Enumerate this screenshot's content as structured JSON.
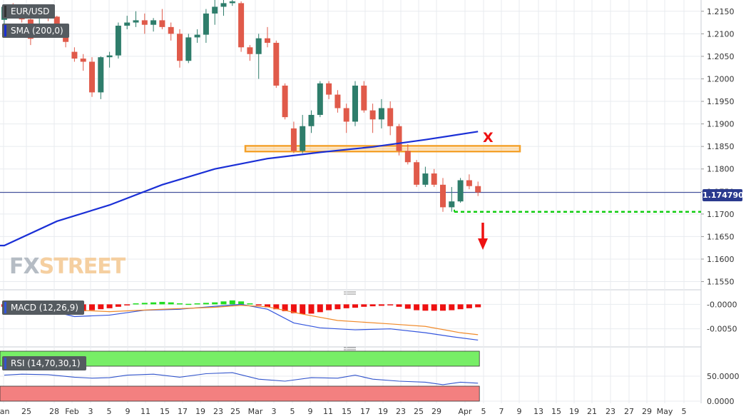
{
  "instrument": "EUR/USD",
  "sma_label": "SMA (200,0)",
  "macd_label": "MACD (12,26,9)",
  "rsi_label": "RSI (14,70,30,1)",
  "last_price": "1.174790",
  "watermark": {
    "fx": "FX",
    "street": "STREET"
  },
  "annotation_x": "X",
  "colors": {
    "up": "#2e7d6b",
    "down": "#e05a4a",
    "sma": "#1a2fd6",
    "resistance_zone": "#f4a12a",
    "support_line": "#11cc11",
    "arrow": "#ee1111",
    "price_line": "#2a3a8e",
    "macd_line": "#3355dd",
    "macd_signal": "#f08a2a",
    "macd_hist_pos": "#22dd22",
    "macd_hist_neg": "#ee1111",
    "rsi_line": "#3355cc",
    "rsi_overbought": "#77ee66",
    "rsi_oversold": "#f38080",
    "grid": "#e8ebef",
    "axis_text": "#333333"
  },
  "chart_data": [
    {
      "type": "candlestick",
      "title": "EUR/USD",
      "ylim": [
        1.1535,
        1.2175
      ],
      "y_ticks": [
        "1.2150",
        "1.2100",
        "1.2050",
        "1.2000",
        "1.1950",
        "1.1900",
        "1.1850",
        "1.1800",
        "1.1750",
        "1.1700",
        "1.1650",
        "1.1600",
        "1.1550"
      ],
      "x_ticks": [
        "Jan",
        "25",
        "28",
        "Feb",
        "3",
        "5",
        "9",
        "11",
        "15",
        "17",
        "19",
        "23",
        "25",
        "Mar",
        "3",
        "5",
        "9",
        "11",
        "15",
        "17",
        "19",
        "23",
        "25",
        "29",
        "Apr",
        "5",
        "7",
        "9",
        "13",
        "15",
        "19",
        "21",
        "23",
        "27",
        "29",
        "May",
        "5"
      ],
      "candles": [
        [
          1.2131,
          1.2165,
          1.2116,
          1.216
        ],
        [
          1.216,
          1.2168,
          1.2138,
          1.215
        ],
        [
          1.215,
          1.216,
          1.2125,
          1.2132
        ],
        [
          1.2132,
          1.214,
          1.2075,
          1.2089
        ],
        [
          1.2136,
          1.2158,
          1.2118,
          1.215
        ],
        [
          1.215,
          1.2165,
          1.2128,
          1.2138
        ],
        [
          1.2138,
          1.214,
          1.2095,
          1.211
        ],
        [
          1.211,
          1.2115,
          1.207,
          1.2082
        ],
        [
          1.206,
          1.207,
          1.2038,
          1.2045
        ],
        [
          1.2045,
          1.2055,
          1.2018,
          1.2038
        ],
        [
          1.2038,
          1.2048,
          1.196,
          1.197
        ],
        [
          1.197,
          1.205,
          1.1955,
          1.2048
        ],
        [
          1.2048,
          1.206,
          1.2025,
          1.2052
        ],
        [
          1.2052,
          1.2125,
          1.2045,
          1.2118
        ],
        [
          1.2118,
          1.214,
          1.211,
          1.2125
        ],
        [
          1.2125,
          1.215,
          1.2115,
          1.213
        ],
        [
          1.213,
          1.2145,
          1.21,
          1.212
        ],
        [
          1.212,
          1.2135,
          1.2105,
          1.213
        ],
        [
          1.213,
          1.2155,
          1.211,
          1.2115
        ],
        [
          1.2115,
          1.2125,
          1.2085,
          1.21
        ],
        [
          1.21,
          1.211,
          1.2025,
          1.204
        ],
        [
          1.204,
          1.21,
          1.2035,
          1.2092
        ],
        [
          1.2092,
          1.211,
          1.208,
          1.2098
        ],
        [
          1.2098,
          1.2155,
          1.208,
          1.2145
        ],
        [
          1.2145,
          1.2175,
          1.212,
          1.216
        ],
        [
          1.216,
          1.2175,
          1.214,
          1.2168
        ],
        [
          1.2168,
          1.2178,
          1.2162,
          1.2172
        ],
        [
          1.2168,
          1.2172,
          1.206,
          1.207
        ],
        [
          1.207,
          1.2075,
          1.204,
          1.2055
        ],
        [
          1.2055,
          1.21,
          1.2,
          1.209
        ],
        [
          1.209,
          1.2115,
          1.207,
          1.208
        ],
        [
          1.208,
          1.2085,
          1.198,
          1.1985
        ],
        [
          1.1985,
          1.199,
          1.191,
          1.1915
        ],
        [
          1.189,
          1.1905,
          1.1835,
          1.184
        ],
        [
          1.184,
          1.192,
          1.1835,
          1.1895
        ],
        [
          1.1895,
          1.193,
          1.188,
          1.192
        ],
        [
          1.192,
          1.1995,
          1.1915,
          1.199
        ],
        [
          1.199,
          1.1995,
          1.1955,
          1.1965
        ],
        [
          1.1965,
          1.1975,
          1.1925,
          1.1935
        ],
        [
          1.1935,
          1.1945,
          1.188,
          1.1905
        ],
        [
          1.1905,
          1.1995,
          1.1895,
          1.1985
        ],
        [
          1.1985,
          1.1995,
          1.1925,
          1.193
        ],
        [
          1.193,
          1.1945,
          1.188,
          1.191
        ],
        [
          1.191,
          1.1955,
          1.189,
          1.1935
        ],
        [
          1.1935,
          1.195,
          1.1875,
          1.1895
        ],
        [
          1.1895,
          1.19,
          1.183,
          1.184
        ],
        [
          1.184,
          1.1855,
          1.181,
          1.1815
        ],
        [
          1.1815,
          1.182,
          1.176,
          1.1765
        ],
        [
          1.1765,
          1.1805,
          1.176,
          1.179
        ],
        [
          1.179,
          1.18,
          1.176,
          1.1765
        ],
        [
          1.1765,
          1.178,
          1.1705,
          1.1715
        ],
        [
          1.1715,
          1.176,
          1.1705,
          1.1728
        ],
        [
          1.1728,
          1.178,
          1.1725,
          1.1775
        ],
        [
          1.1775,
          1.1788,
          1.1755,
          1.1762
        ],
        [
          1.1762,
          1.1772,
          1.174,
          1.1748
        ]
      ],
      "sma_200": [
        [
          0,
          1.163
        ],
        [
          6,
          1.1684
        ],
        [
          12,
          1.172
        ],
        [
          18,
          1.1765
        ],
        [
          24,
          1.18
        ],
        [
          30,
          1.1823
        ],
        [
          36,
          1.1837
        ],
        [
          42,
          1.1849
        ],
        [
          48,
          1.1865
        ],
        [
          54,
          1.1883
        ]
      ],
      "resistance_zone": [
        1.1842,
        1.1848
      ],
      "support_level": 1.1705,
      "last_price": 1.17479
    },
    {
      "type": "line",
      "title": "MACD (12,26,9)",
      "ylim": [
        -0.0084,
        0.0018
      ],
      "y_ticks": [
        "-0.0000",
        "-0.0050"
      ],
      "series": [
        {
          "name": "MACD",
          "values": [
            [
              0,
              0.0
            ],
            [
              4,
              -0.0008
            ],
            [
              8,
              -0.0025
            ],
            [
              12,
              -0.0022
            ],
            [
              16,
              -0.0012
            ],
            [
              20,
              -0.001
            ],
            [
              24,
              -0.0004
            ],
            [
              27,
              0.0
            ],
            [
              30,
              -0.001
            ],
            [
              33,
              -0.0038
            ],
            [
              36,
              -0.0048
            ],
            [
              40,
              -0.0052
            ],
            [
              44,
              -0.005
            ],
            [
              48,
              -0.0058
            ],
            [
              51,
              -0.0066
            ],
            [
              54,
              -0.0073
            ]
          ]
        },
        {
          "name": "Signal",
          "values": [
            [
              0,
              0.0002
            ],
            [
              6,
              -0.001
            ],
            [
              12,
              -0.0015
            ],
            [
              18,
              -0.001
            ],
            [
              24,
              -0.0006
            ],
            [
              27,
              -0.0002
            ],
            [
              30,
              -0.0005
            ],
            [
              34,
              -0.002
            ],
            [
              38,
              -0.0033
            ],
            [
              44,
              -0.004
            ],
            [
              48,
              -0.0045
            ],
            [
              52,
              -0.0058
            ],
            [
              54,
              -0.0062
            ]
          ]
        }
      ],
      "histogram": [
        -0.0005,
        -0.0006,
        -0.0006,
        -0.0008,
        -0.0009,
        -0.001,
        -0.0012,
        -0.0014,
        -0.0015,
        -0.0014,
        -0.0012,
        -0.001,
        -0.0008,
        -0.0005,
        -0.0002,
        0.0002,
        0.0003,
        0.0004,
        0.0005,
        0.0004,
        0.0002,
        0.0001,
        0.0002,
        0.0003,
        0.0004,
        0.0006,
        0.0008,
        0.0006,
        0.0002,
        -0.0002,
        -0.0006,
        -0.001,
        -0.0014,
        -0.0018,
        -0.002,
        -0.0019,
        -0.0016,
        -0.0012,
        -0.001,
        -0.0008,
        -0.0007,
        -0.0005,
        -0.0004,
        -0.0003,
        -0.0002,
        -0.0005,
        -0.0009,
        -0.0012,
        -0.0013,
        -0.0013,
        -0.0013,
        -0.0012,
        -0.001,
        -0.0008,
        -0.0006
      ]
    },
    {
      "type": "line",
      "title": "RSI (14,70,30,1)",
      "ylim": [
        0,
        100
      ],
      "y_ticks": [
        "50.0000",
        "0.0000"
      ],
      "levels": {
        "overbought": 70,
        "oversold": 30
      },
      "series": [
        {
          "name": "RSI",
          "values": [
            [
              0,
              52
            ],
            [
              2,
              54
            ],
            [
              5,
              53
            ],
            [
              8,
              48
            ],
            [
              10,
              46
            ],
            [
              12,
              47
            ],
            [
              14,
              52
            ],
            [
              17,
              54
            ],
            [
              20,
              48
            ],
            [
              23,
              55
            ],
            [
              26,
              57
            ],
            [
              29,
              44
            ],
            [
              32,
              40
            ],
            [
              35,
              47
            ],
            [
              38,
              46
            ],
            [
              40,
              52
            ],
            [
              42,
              44
            ],
            [
              45,
              40
            ],
            [
              48,
              38
            ],
            [
              50,
              33
            ],
            [
              52,
              38
            ],
            [
              54,
              36
            ]
          ]
        }
      ]
    }
  ]
}
